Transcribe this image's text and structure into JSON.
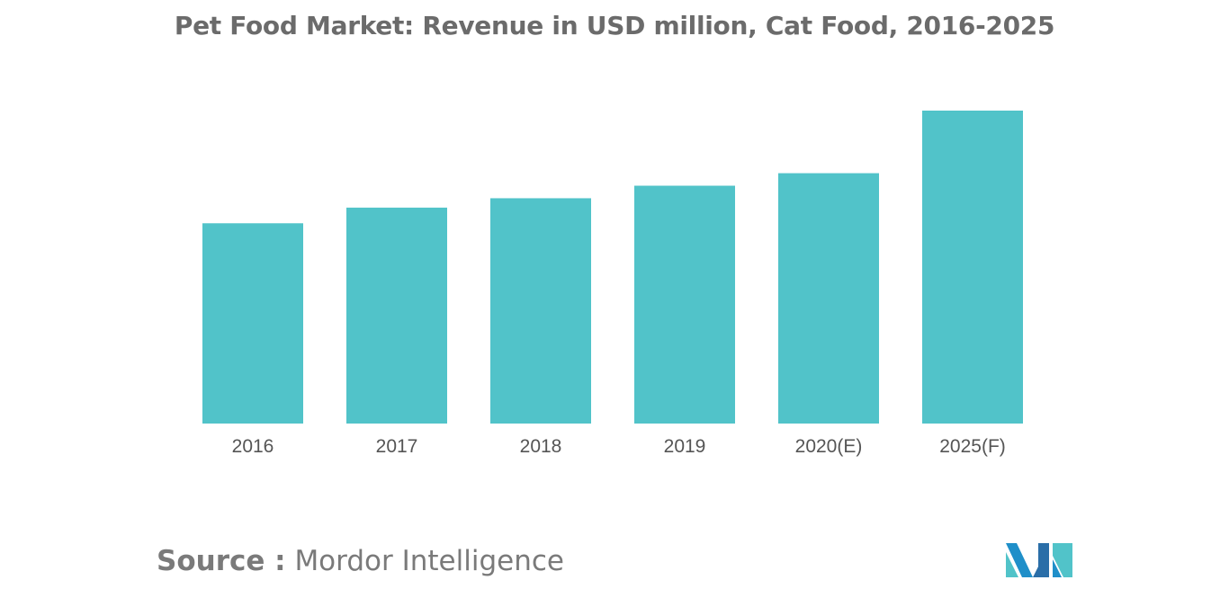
{
  "chart_data": {
    "type": "bar",
    "title": "Pet Food Market: Revenue in USD million, Cat Food, 2016-2025",
    "xlabel": "",
    "ylabel": "",
    "categories": [
      "2016",
      "2017",
      "2018",
      "2019",
      "2020(E)",
      "2025(F)"
    ],
    "values": [
      64,
      69,
      72,
      76,
      80,
      100
    ],
    "ylim": [
      0,
      100
    ],
    "grid": false,
    "legend": "none",
    "colors": {
      "bar": "#51c3c9"
    }
  },
  "footer": {
    "source_prefix": "Source :",
    "source_name": "Mordor Intelligence"
  },
  "logo": {
    "icon": "mordor-intelligence-logo-icon",
    "colors": [
      "#1f8fc9",
      "#51c3c9",
      "#2a6ea8"
    ]
  }
}
